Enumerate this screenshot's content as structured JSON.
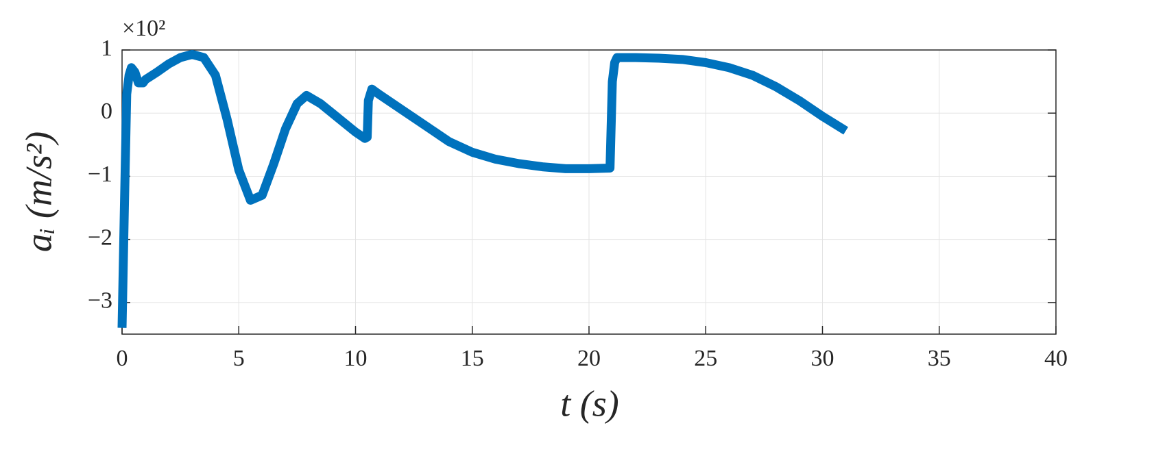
{
  "chart_data": {
    "type": "line",
    "x_label": "t (s)",
    "y_label": "aᵢ (m/s²)",
    "y_multiplier": "×10²",
    "xlim": [
      0,
      40
    ],
    "xticks": [
      0,
      5,
      10,
      15,
      20,
      25,
      30,
      35,
      40
    ],
    "ylim": [
      -3.5,
      1
    ],
    "yticks": [
      {
        "value": -3,
        "label": "−3"
      },
      {
        "value": -2,
        "label": "−2"
      },
      {
        "value": -1,
        "label": "−1"
      },
      0,
      1
    ],
    "grid": true,
    "series": [
      {
        "color": "#0072bd",
        "x": [
          0,
          0.1,
          0.2,
          0.3,
          0.4,
          0.55,
          0.7,
          0.9,
          1,
          1.5,
          2,
          2.5,
          3,
          3.5,
          4,
          4.5,
          5,
          5.5,
          6,
          6.5,
          7,
          7.5,
          7.9,
          8.5,
          9,
          9.5,
          10,
          10.4,
          10.5,
          10.55,
          10.7,
          11,
          12,
          13,
          14,
          15,
          16,
          17,
          18,
          19,
          20,
          20.9,
          21,
          21.1,
          21.2,
          22,
          23,
          24,
          25,
          26,
          27,
          28,
          29,
          30,
          31
        ],
        "values": [
          -3.4,
          -1.5,
          0.3,
          0.6,
          0.72,
          0.65,
          0.48,
          0.48,
          0.53,
          0.65,
          0.78,
          0.88,
          0.93,
          0.88,
          0.6,
          -0.1,
          -0.9,
          -1.38,
          -1.3,
          -0.8,
          -0.25,
          0.15,
          0.28,
          0.15,
          0,
          -0.15,
          -0.3,
          -0.4,
          -0.38,
          0.2,
          0.38,
          0.3,
          0.05,
          -0.2,
          -0.45,
          -0.62,
          -0.73,
          -0.8,
          -0.85,
          -0.88,
          -0.88,
          -0.87,
          0.5,
          0.8,
          0.88,
          0.88,
          0.87,
          0.85,
          0.8,
          0.72,
          0.6,
          0.42,
          0.2,
          -0.05,
          -0.28
        ]
      }
    ]
  }
}
